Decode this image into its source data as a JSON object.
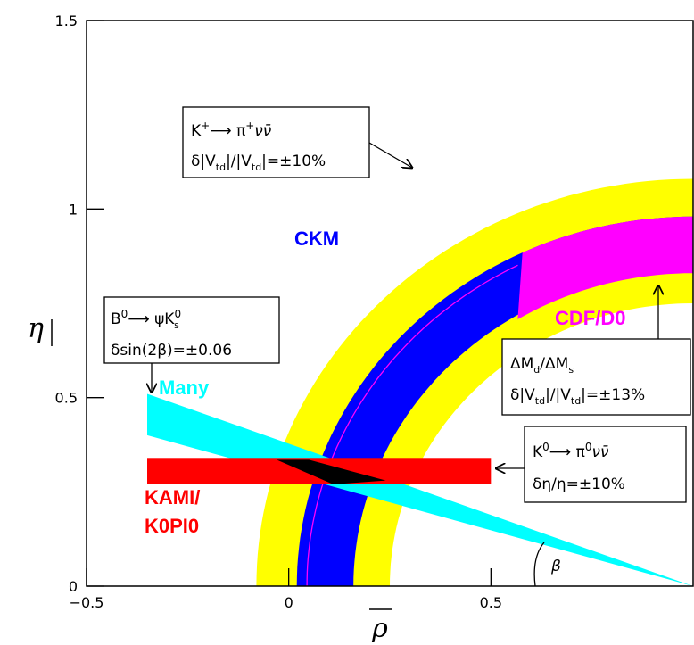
{
  "chart_data": {
    "type": "area",
    "xlabel": "ρ",
    "ylabel": "η",
    "xlim": [
      -0.5,
      1.0
    ],
    "ylim": [
      0,
      1.5
    ],
    "x_ticks": [
      -0.5,
      0,
      0.5
    ],
    "x_tick_labels": [
      "−0.5",
      "0",
      "0.5"
    ],
    "y_ticks": [
      0,
      0.5,
      1,
      1.5
    ],
    "y_tick_labels": [
      "0",
      "0.5",
      "1",
      "1.5"
    ],
    "regions": [
      {
        "name": "CKM",
        "shape": "annulus",
        "center": [
          1,
          0
        ],
        "inner_radius": 0.84,
        "outer_radius": 0.98,
        "color": "#0000ff",
        "error_color": "#ffff00",
        "error_inner_radius": 0.75,
        "error_outer_radius": 1.08
      },
      {
        "name": "CDF/D0",
        "shape": "annulus",
        "center": [
          1,
          0
        ],
        "inner_radius": 0.83,
        "outer_radius": 0.98,
        "x_start": 0.56,
        "color": "#ff00ff"
      },
      {
        "name": "Many",
        "shape": "wedge",
        "apex": [
          1,
          0
        ],
        "line_lower": [
          [
            -0.35,
            0.4
          ],
          [
            1,
            0
          ]
        ],
        "line_upper": [
          [
            -0.35,
            0.51
          ],
          [
            1,
            0
          ]
        ],
        "color": "#00ffff"
      },
      {
        "name": "KAMI/K0PI0",
        "shape": "band",
        "x_range": [
          -0.35,
          0.5
        ],
        "y_range": [
          0.27,
          0.34
        ],
        "color": "#ff0000"
      }
    ],
    "magenta_curve": {
      "center": [
        1,
        0
      ],
      "radius": 0.955,
      "x_max": 0.58,
      "color": "#ff00ff"
    },
    "labels": {
      "ckm": "CKM",
      "cdf": "CDF/D0",
      "many": "Many",
      "kami_1": "KAMI/",
      "kami_2": "K0PI0",
      "beta": "β"
    },
    "annotations": [
      {
        "id": "kplus",
        "line1_a": "K",
        "line1_sup1": "+",
        "line1_b": "⟶ π",
        "line1_sup2": "+",
        "line1_c": "νν̄",
        "line2_a": "δ|V",
        "line2_sub1": "td",
        "line2_b": "|/|V",
        "line2_sub2": "td",
        "line2_c": "|=±10%"
      },
      {
        "id": "b0",
        "line1_a": "B",
        "line1_sup1": "0",
        "line1_b": "⟶ ψK",
        "line1_sup2": "0",
        "line1_sub": "s",
        "line2": "δsin(2β)=±0.06"
      },
      {
        "id": "dm",
        "line1_a": "ΔM",
        "line1_sub1": "d",
        "line1_b": "/ΔM",
        "line1_sub2": "s",
        "line2_a": "δ|V",
        "line2_sub1": "td",
        "line2_b": "|/|V",
        "line2_sub2": "td",
        "line2_c": "|=±13%"
      },
      {
        "id": "k0",
        "line1_a": "K",
        "line1_sup1": "0",
        "line1_b": "⟶ π",
        "line1_sup2": "0",
        "line1_c": "νν̄",
        "line2": "δη/η=±10%"
      }
    ]
  }
}
